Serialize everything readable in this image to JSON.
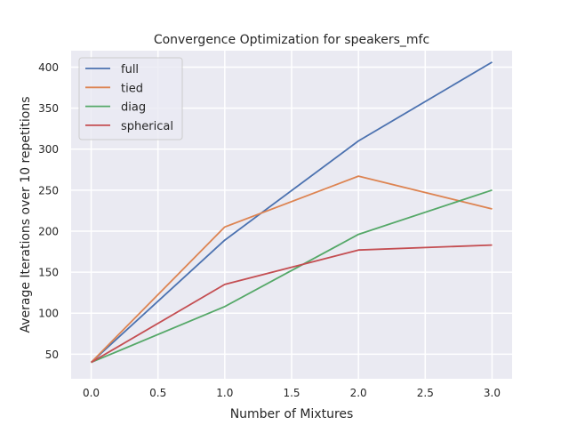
{
  "chart_data": {
    "type": "line",
    "title": "Convergence Optimization for speakers_mfc",
    "xlabel": "Number of Mixtures",
    "ylabel": "Average Iterations over 10 repetitions",
    "x": [
      0,
      1,
      2,
      3
    ],
    "xlim": [
      -0.15,
      3.15
    ],
    "ylim": [
      20,
      420
    ],
    "xticks": [
      0.0,
      0.5,
      1.0,
      1.5,
      2.0,
      2.5,
      3.0
    ],
    "xtick_labels": [
      "0.0",
      "0.5",
      "1.0",
      "1.5",
      "2.0",
      "2.5",
      "3.0"
    ],
    "yticks": [
      50,
      100,
      150,
      200,
      250,
      300,
      350,
      400
    ],
    "ytick_labels": [
      "50",
      "100",
      "150",
      "200",
      "250",
      "300",
      "350",
      "400"
    ],
    "grid": true,
    "legend_position": "top-left",
    "series": [
      {
        "name": "full",
        "color": "#4c72b0",
        "values": [
          40,
          189,
          310,
          406
        ]
      },
      {
        "name": "tied",
        "color": "#dd8452",
        "values": [
          40,
          205,
          267,
          227
        ]
      },
      {
        "name": "diag",
        "color": "#55a868",
        "values": [
          40,
          108,
          196,
          250
        ]
      },
      {
        "name": "spherical",
        "color": "#c44e52",
        "values": [
          40,
          135,
          177,
          183
        ]
      }
    ]
  }
}
